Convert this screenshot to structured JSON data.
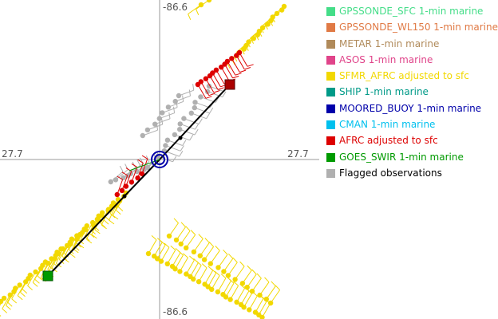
{
  "chart_data": {
    "type": "scatter",
    "axis_labels": {
      "top": "-86.6",
      "bottom": "-86.6",
      "left": "27.7",
      "right": "27.7"
    },
    "legend": [
      {
        "name": "GPSSONDE_SFC 1-min marine",
        "color": "#44dd88"
      },
      {
        "name": "GPSSONDE_WL150 1-min marine",
        "color": "#e07a45"
      },
      {
        "name": "METAR 1-min marine",
        "color": "#b08a5a"
      },
      {
        "name": "ASOS 1-min marine",
        "color": "#e0448a"
      },
      {
        "name": "SFMR_AFRC adjusted to sfc",
        "color": "#f2d800"
      },
      {
        "name": "SHIP 1-min marine",
        "color": "#009a88"
      },
      {
        "name": "MOORED_BUOY 1-min marine",
        "color": "#0000aa"
      },
      {
        "name": "CMAN 1-min marine",
        "color": "#00c0ee"
      },
      {
        "name": "AFRC adjusted to sfc",
        "color": "#dd0000"
      },
      {
        "name": "GOES_SWIR 1-min marine",
        "color": "#009a00"
      },
      {
        "name": "Flagged observations",
        "color": "#b0b0b0"
      }
    ],
    "legend_text_color_last": "#000000",
    "legend_placement": "right"
  }
}
